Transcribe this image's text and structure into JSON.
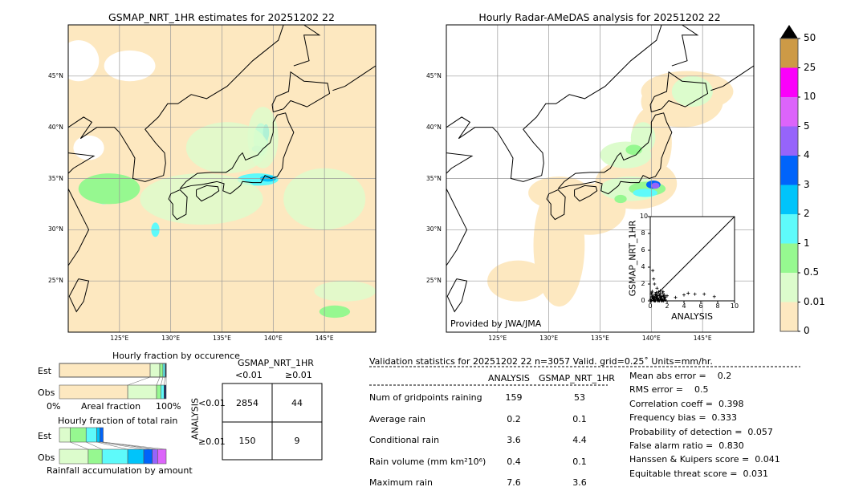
{
  "left_map": {
    "title": "GSMAP_NRT_1HR estimates for 20251202 22"
  },
  "right_map": {
    "title": "Hourly Radar-AMeDAS analysis for 20251202 22",
    "credit": "Provided by JWA/JMA"
  },
  "lon_ticks": [
    "125°E",
    "130°E",
    "135°E",
    "140°E",
    "145°E"
  ],
  "lat_ticks": [
    "45°N",
    "40°N",
    "35°N",
    "30°N",
    "25°N"
  ],
  "colorbar": {
    "labels": [
      "0",
      "0.01",
      "0.5",
      "1",
      "2",
      "3",
      "4",
      "5",
      "10",
      "25",
      "50"
    ],
    "colors": [
      "#fde8c0",
      "#dcfccc",
      "#96f890",
      "#5efafa",
      "#00c4fa",
      "#0064fa",
      "#9664fa",
      "#dc64fa",
      "#fa00fa",
      "#cd9a46"
    ],
    "extend_color": "#000000"
  },
  "scatter": {
    "xlabel": "ANALYSIS",
    "ylabel": "GSMAP_NRT_1HR",
    "ticks": [
      "0",
      "2",
      "4",
      "6",
      "8",
      "10"
    ]
  },
  "occurrence": {
    "title": "Hourly fraction by occurence",
    "est_label": "Est",
    "obs_label": "Obs",
    "xmin_label": "0%",
    "xlabel": "Areal fraction",
    "xmax_label": "100%"
  },
  "total_rain": {
    "title": "Hourly fraction of total rain",
    "est_label": "Est",
    "obs_label": "Obs",
    "xlabel": "Rainfall accumulation by amount"
  },
  "contingency": {
    "col_title": "GSMAP_NRT_1HR",
    "col_labels": [
      "<0.01",
      "≥0.01"
    ],
    "row_title": "ANALYSIS",
    "row_labels": [
      "<0.01",
      "≥0.01"
    ],
    "cells": [
      [
        "2854",
        "44"
      ],
      [
        "150",
        "9"
      ]
    ]
  },
  "stats": {
    "header": "Validation statistics for 20251202 22  n=3057 Valid. grid=0.25˚ Units=mm/hr.",
    "col_analysis": "ANALYSIS",
    "col_gsmap": "GSMAP_NRT_1HR",
    "rows": [
      {
        "label": "Num of gridpoints raining",
        "analysis": "159",
        "gsmap": "53"
      },
      {
        "label": "Average rain",
        "analysis": "0.2",
        "gsmap": "0.1"
      },
      {
        "label": "Conditional rain",
        "analysis": "3.6",
        "gsmap": "4.4"
      },
      {
        "label": "Rain volume (mm km²10⁶)",
        "analysis": "0.4",
        "gsmap": "0.1"
      },
      {
        "label": "Maximum rain",
        "analysis": "7.6",
        "gsmap": "3.6"
      }
    ],
    "scores": [
      "Mean abs error =    0.2",
      "RMS error =    0.5",
      "Correlation coeff =  0.398",
      "Frequency bias =  0.333",
      "Probability of detection =  0.057",
      "False alarm ratio =  0.830",
      "Hanssen & Kuipers score =  0.041",
      "Equitable threat score =  0.031"
    ]
  },
  "chart_data": [
    {
      "type": "heatmap",
      "title": "GSMAP_NRT_1HR estimates for 20251202 22",
      "xlim": [
        120,
        150
      ],
      "ylim": [
        20,
        50
      ],
      "grid": true
    },
    {
      "type": "heatmap",
      "title": "Hourly Radar-AMeDAS analysis for 20251202 22",
      "xlim": [
        120,
        150
      ],
      "ylim": [
        20,
        50
      ],
      "grid": true
    },
    {
      "type": "scatter",
      "xlabel": "ANALYSIS",
      "ylabel": "GSMAP_NRT_1HR",
      "xlim": [
        0,
        10
      ],
      "ylim": [
        0,
        10
      ],
      "points": [
        [
          0.3,
          3.6
        ],
        [
          0.4,
          2.6
        ],
        [
          0.5,
          2.0
        ],
        [
          0.8,
          1.5
        ],
        [
          1.2,
          1.2
        ],
        [
          2.0,
          0.6
        ],
        [
          3.0,
          0.4
        ],
        [
          4.0,
          0.7
        ],
        [
          4.5,
          0.9
        ],
        [
          5.3,
          0.8
        ],
        [
          6.4,
          0.8
        ],
        [
          7.6,
          0.5
        ],
        [
          0.5,
          0.3
        ],
        [
          1.0,
          0.2
        ],
        [
          1.5,
          0.1
        ]
      ]
    },
    {
      "type": "bar",
      "title": "Hourly fraction by occurence",
      "categories": [
        "Est",
        "Obs"
      ],
      "series": [
        {
          "values": [
            0.85,
            0.64
          ]
        },
        {
          "values": [
            0.09,
            0.27
          ]
        },
        {
          "values": [
            0.03,
            0.04
          ]
        },
        {
          "values": [
            0.02,
            0.03
          ]
        },
        {
          "values": [
            0.01,
            0.02
          ]
        }
      ]
    },
    {
      "type": "bar",
      "title": "Hourly fraction of total rain",
      "categories": [
        "Est",
        "Obs"
      ],
      "series": [
        {
          "values": [
            0.1,
            0.27
          ]
        },
        {
          "values": [
            0.15,
            0.13
          ]
        },
        {
          "values": [
            0.1,
            0.24
          ]
        },
        {
          "values": [
            0.03,
            0.15
          ]
        },
        {
          "values": [
            0.03,
            0.08
          ]
        },
        {
          "values": [
            0,
            0.05
          ]
        },
        {
          "values": [
            0,
            0.08
          ]
        }
      ]
    }
  ]
}
